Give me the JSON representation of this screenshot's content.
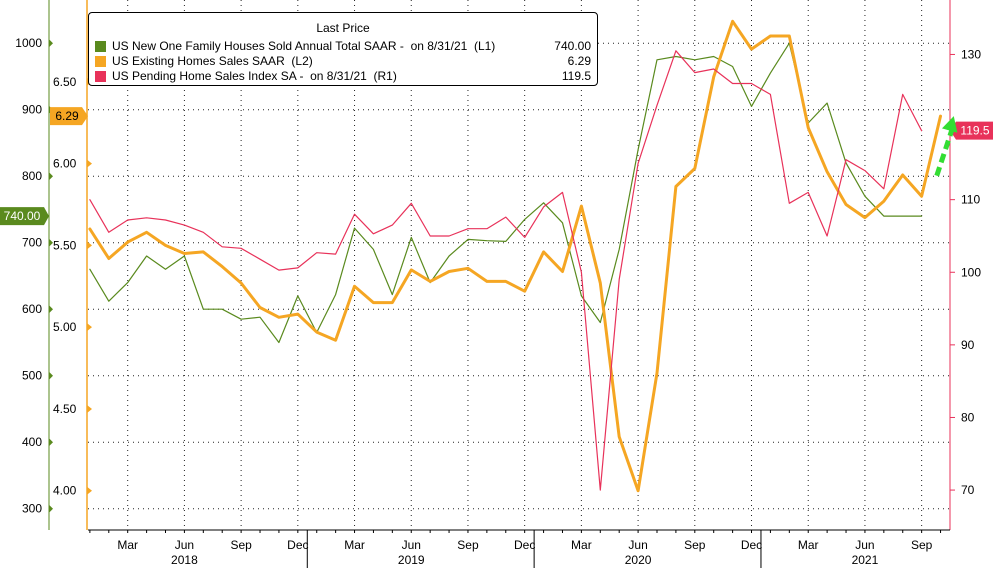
{
  "chart_data": {
    "type": "line",
    "legend": {
      "title": "Last Price",
      "placement": "top-left",
      "entries": [
        {
          "label": "US New One Family Houses Sold Annual Total SAAR -  on 8/31/21  (L1)",
          "value": "740.00",
          "color": "#5a8a1e"
        },
        {
          "label": "US Existing Homes Sales SAAR  (L2)",
          "value": "6.29",
          "color": "#f5a623"
        },
        {
          "label": "US Pending Home Sales Index SA -  on 8/31/21  (R1)",
          "value": "119.5",
          "color": "#e8325a"
        }
      ]
    },
    "x_ticks": [
      "Mar",
      "Jun",
      "Sep",
      "Dec",
      "Mar",
      "Jun",
      "Sep",
      "Dec",
      "Mar",
      "Jun",
      "Sep",
      "Dec",
      "Mar",
      "Jun",
      "Sep"
    ],
    "x_tick_months": [
      2,
      5,
      8,
      11,
      14,
      17,
      20,
      23,
      26,
      29,
      32,
      35,
      38,
      41,
      44
    ],
    "years": [
      {
        "label": "2018",
        "month": 5
      },
      {
        "label": "2019",
        "month": 17
      },
      {
        "label": "2020",
        "month": 29
      },
      {
        "label": "2021",
        "month": 41
      }
    ],
    "xlim": [
      -0.1,
      45.5
    ],
    "axes": {
      "L1": {
        "ylim": [
          268,
          1065
        ],
        "ticks": [
          "300",
          "400",
          "500",
          "600",
          "700",
          "800",
          "900",
          "1000"
        ],
        "tick_values": [
          300,
          400,
          500,
          600,
          700,
          800,
          900,
          1000
        ],
        "color": "#5a8a1e"
      },
      "L2": {
        "ylim": [
          3.76,
          7.0
        ],
        "ticks": [
          "4.00",
          "4.50",
          "5.00",
          "5.50",
          "6.00",
          "6.50"
        ],
        "tick_values": [
          4.0,
          4.5,
          5.0,
          5.5,
          6.0,
          6.5
        ],
        "color": "#f5a623"
      },
      "R1": {
        "ylim": [
          64.5,
          137.5
        ],
        "ticks": [
          "70",
          "80",
          "90",
          "100",
          "110",
          "120",
          "130"
        ],
        "tick_values": [
          70,
          80,
          90,
          100,
          110,
          120,
          130
        ],
        "color": "#e8325a"
      }
    },
    "grid": true,
    "series": [
      {
        "name": "US New One Family Houses Sold Annual Total SAAR -  on 8/31/21  (L1)",
        "axis": "L1",
        "color": "#5a8a1e",
        "width": 1.2,
        "start_month": 0,
        "values": [
          660,
          612,
          640,
          680,
          660,
          680,
          600,
          600,
          585,
          588,
          550,
          620,
          565,
          622,
          722,
          690,
          622,
          708,
          640,
          680,
          705,
          703,
          702,
          735,
          760,
          730,
          620,
          580,
          690,
          840,
          975,
          980,
          975,
          980,
          965,
          905,
          955,
          1000,
          880,
          910,
          820,
          770,
          740,
          740,
          740
        ]
      },
      {
        "name": "US Existing Homes Sales SAAR  (L2)",
        "axis": "L2",
        "color": "#f5a623",
        "width": 3,
        "start_month": 0,
        "values": [
          5.6,
          5.42,
          5.52,
          5.58,
          5.5,
          5.45,
          5.46,
          5.37,
          5.27,
          5.12,
          5.06,
          5.08,
          4.97,
          4.92,
          5.25,
          5.15,
          5.15,
          5.35,
          5.28,
          5.34,
          5.36,
          5.28,
          5.28,
          5.22,
          5.46,
          5.34,
          5.74,
          5.27,
          4.33,
          4.0,
          4.72,
          5.86,
          5.97,
          6.53,
          6.87,
          6.7,
          6.78,
          6.78,
          6.22,
          5.95,
          5.75,
          5.67,
          5.77,
          5.93,
          5.8,
          6.29
        ]
      },
      {
        "name": "US Pending Home Sales Index SA -  on 8/31/21  (R1)",
        "axis": "R1",
        "color": "#e8325a",
        "width": 1.2,
        "start_month": 0,
        "values": [
          110,
          105.5,
          107.2,
          107.5,
          107.2,
          106.5,
          105.5,
          103.5,
          103.3,
          101.8,
          100.3,
          100.6,
          102.7,
          102.5,
          108,
          105.3,
          106.5,
          109.5,
          105,
          105,
          106,
          106,
          107.6,
          104.8,
          109,
          111,
          100,
          70,
          99,
          115,
          123,
          130.5,
          127.5,
          128,
          126,
          126,
          124.5,
          109.5,
          111,
          105,
          115.5,
          114,
          111.5,
          124.5,
          119.5
        ]
      }
    ],
    "last_value_tags": [
      {
        "axis": "L1",
        "text": "740.00",
        "color": "#5a8a1e"
      },
      {
        "axis": "L2",
        "text": "6.29",
        "color": "#f5a623"
      },
      {
        "axis": "R1",
        "text": "119.5",
        "color": "#e8325a"
      }
    ],
    "annotation": {
      "type": "dashed-arrow",
      "color": "#33dd33",
      "from_month": 44.8,
      "from_value": 113.3,
      "to_month": 45.7,
      "to_value": 121.5,
      "axis": "R1"
    }
  }
}
